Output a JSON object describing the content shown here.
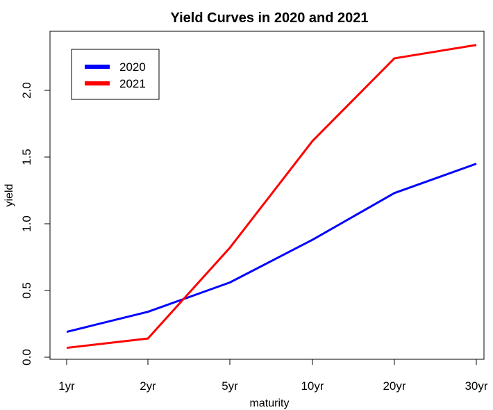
{
  "chart_data": {
    "type": "line",
    "title": "Yield Curves in 2020 and 2021",
    "xlabel": "maturity",
    "ylabel": "yield",
    "categories": [
      "1yr",
      "2yr",
      "5yr",
      "10yr",
      "20yr",
      "30yr"
    ],
    "series": [
      {
        "name": "2020",
        "color": "#0000ff",
        "values": [
          0.19,
          0.34,
          0.56,
          0.88,
          1.23,
          1.45
        ]
      },
      {
        "name": "2021",
        "color": "#ff0000",
        "values": [
          0.07,
          0.14,
          0.82,
          1.62,
          2.24,
          2.34
        ]
      }
    ],
    "ylim": [
      0,
      2.34
    ],
    "yticks": [
      "0.0",
      "0.5",
      "1.0",
      "1.5",
      "2.0"
    ],
    "grid": false,
    "legend_position": "top-left"
  }
}
